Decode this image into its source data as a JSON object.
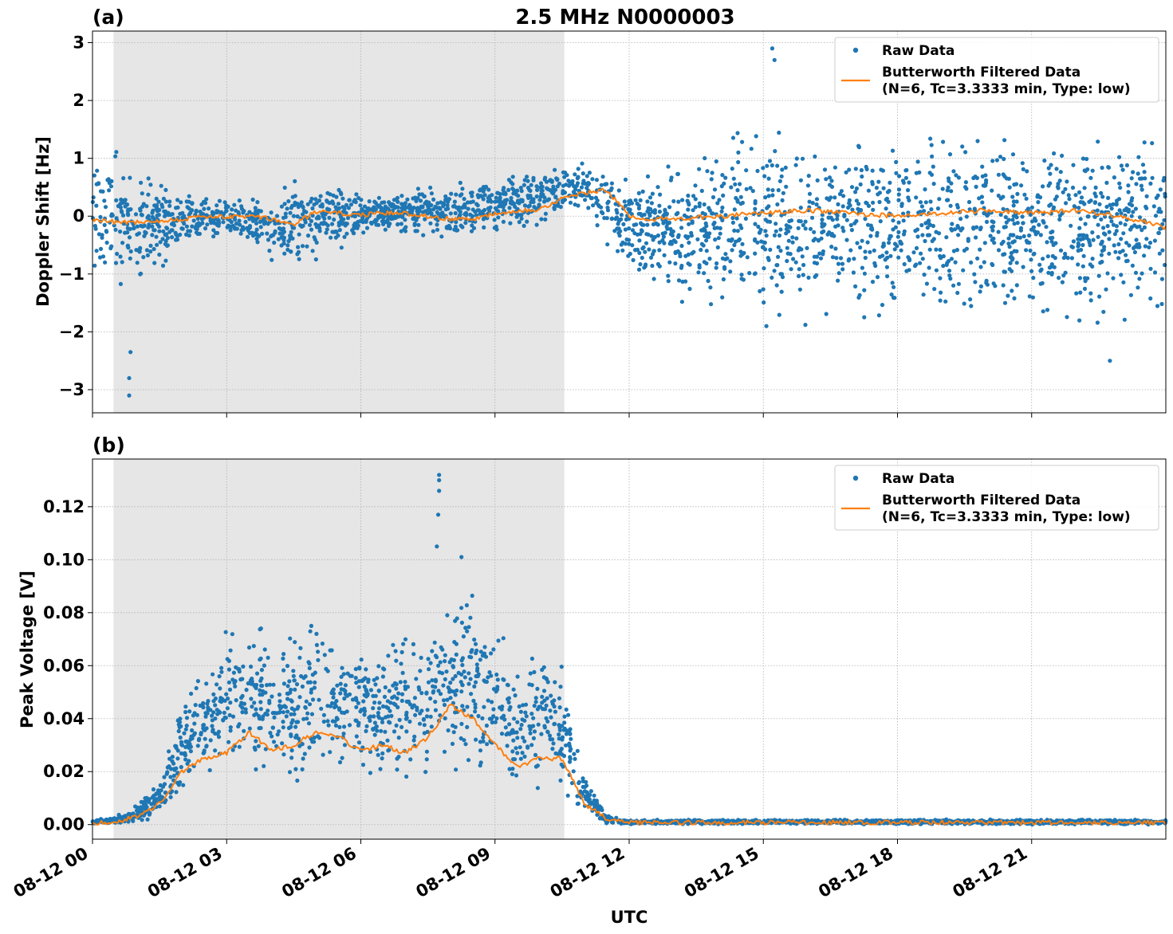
{
  "figure": {
    "title": "2.5 MHz N0000003",
    "xlabel": "UTC"
  },
  "chart_data": [
    {
      "type": "scatter",
      "panel_label": "(a)",
      "ylabel": "Doppler Shift [Hz]",
      "ylim": [
        -3.4,
        3.2
      ],
      "yticks": [
        -3,
        -2,
        -1,
        0,
        1,
        2,
        3
      ],
      "ytick_labels": [
        "−3",
        "−2",
        "−1",
        "0",
        "1",
        "2",
        "3"
      ],
      "xlim": [
        "08-12 00:00",
        "08-12 24:00"
      ],
      "xticks_hours": [
        0,
        3,
        6,
        9,
        12,
        15,
        18,
        21
      ],
      "xtick_labels": [
        "08-12 00",
        "08-12 03",
        "08-12 06",
        "08-12 09",
        "08-12 12",
        "08-12 15",
        "08-12 18",
        "08-12 21"
      ],
      "shaded_span_hours": [
        0.47,
        10.55
      ],
      "grid": true,
      "legend_placement": "top-right",
      "series": [
        {
          "name": "Raw Data",
          "kind": "scatter",
          "color": "#1f77b4",
          "envelope_hours": [
            0,
            1,
            2,
            3,
            4,
            5,
            6,
            7,
            8,
            9,
            10,
            11,
            12,
            13,
            14,
            15,
            16,
            17,
            18,
            19,
            20,
            21,
            22,
            23,
            24
          ],
          "envelope_low": [
            -1.0,
            -1.5,
            -0.6,
            -0.4,
            -0.8,
            -0.9,
            -0.4,
            -0.4,
            -0.4,
            -0.3,
            -0.2,
            0.0,
            -1.2,
            -1.7,
            -1.9,
            -2.0,
            -2.0,
            -2.0,
            -2.0,
            -2.0,
            -2.0,
            -2.0,
            -2.0,
            -2.0,
            -2.0
          ],
          "envelope_high": [
            1.3,
            1.0,
            0.5,
            0.4,
            0.4,
            0.9,
            0.5,
            0.5,
            0.6,
            0.7,
            0.9,
            1.0,
            0.8,
            1.2,
            1.6,
            1.6,
            1.6,
            1.6,
            1.6,
            1.6,
            1.6,
            1.6,
            1.6,
            1.6,
            1.6
          ],
          "outliers": [
            {
              "x_hours": 0.82,
              "y": -3.1
            },
            {
              "x_hours": 0.82,
              "y": -2.8
            },
            {
              "x_hours": 0.85,
              "y": -2.35
            },
            {
              "x_hours": 15.2,
              "y": 2.9
            },
            {
              "x_hours": 15.25,
              "y": 2.7
            },
            {
              "x_hours": 22.75,
              "y": -2.5
            }
          ]
        },
        {
          "name": "Butterworth Filtered Data\n(N=6, Tc=3.3333 min, Type: low)",
          "kind": "line",
          "color": "#ff7f0e",
          "x_hours": [
            0,
            0.5,
            1,
            1.5,
            2,
            2.5,
            3,
            3.5,
            4,
            4.5,
            5,
            5.5,
            6,
            6.5,
            7,
            7.5,
            8,
            8.5,
            9,
            9.5,
            10,
            10.5,
            11,
            11.5,
            12,
            12.5,
            13,
            14,
            15,
            16,
            17,
            18,
            19,
            20,
            21,
            22,
            23,
            24
          ],
          "y": [
            -0.05,
            -0.1,
            -0.1,
            -0.08,
            -0.05,
            0.0,
            -0.02,
            0.0,
            -0.05,
            -0.15,
            0.08,
            0.05,
            0.02,
            0.05,
            0.05,
            0.0,
            -0.05,
            -0.05,
            0.05,
            0.1,
            0.12,
            0.3,
            0.4,
            0.45,
            0.0,
            -0.05,
            -0.05,
            0.0,
            0.05,
            0.1,
            0.05,
            0.0,
            0.05,
            0.1,
            0.05,
            0.1,
            0.0,
            -0.2
          ]
        }
      ]
    },
    {
      "type": "scatter",
      "panel_label": "(b)",
      "ylabel": "Peak Voltage [V]",
      "ylim": [
        -0.0055,
        0.138
      ],
      "yticks": [
        0.0,
        0.02,
        0.04,
        0.06,
        0.08,
        0.1,
        0.12
      ],
      "ytick_labels": [
        "0.00",
        "0.02",
        "0.04",
        "0.06",
        "0.08",
        "0.10",
        "0.12"
      ],
      "xlim": [
        "08-12 00:00",
        "08-12 24:00"
      ],
      "xticks_hours": [
        0,
        3,
        6,
        9,
        12,
        15,
        18,
        21
      ],
      "xtick_labels": [
        "08-12 00",
        "08-12 03",
        "08-12 06",
        "08-12 09",
        "08-12 12",
        "08-12 15",
        "08-12 18",
        "08-12 21"
      ],
      "shaded_span_hours": [
        0.47,
        10.55
      ],
      "grid": true,
      "legend_placement": "top-right",
      "series": [
        {
          "name": "Raw Data",
          "kind": "scatter",
          "color": "#1f77b4",
          "envelope_hours": [
            0,
            0.5,
            1,
            1.5,
            2,
            2.5,
            3,
            3.5,
            4,
            4.5,
            5,
            5.5,
            6,
            6.5,
            7,
            7.5,
            8,
            8.5,
            9,
            9.5,
            10,
            10.5,
            11,
            11.5,
            12,
            13,
            15,
            18,
            21,
            24
          ],
          "envelope_low": [
            0.0,
            0.0,
            0.0,
            0.002,
            0.01,
            0.015,
            0.015,
            0.015,
            0.015,
            0.015,
            0.015,
            0.015,
            0.015,
            0.015,
            0.015,
            0.015,
            0.015,
            0.015,
            0.012,
            0.012,
            0.012,
            0.01,
            0.002,
            0.0,
            0.0,
            0.0,
            0.0,
            0.0,
            0.0,
            0.0
          ],
          "envelope_high": [
            0.002,
            0.003,
            0.008,
            0.02,
            0.05,
            0.06,
            0.075,
            0.085,
            0.07,
            0.075,
            0.085,
            0.08,
            0.075,
            0.07,
            0.075,
            0.08,
            0.09,
            0.1,
            0.08,
            0.06,
            0.07,
            0.065,
            0.02,
            0.004,
            0.002,
            0.002,
            0.002,
            0.002,
            0.002,
            0.002
          ],
          "outliers": [
            {
              "x_hours": 7.75,
              "y": 0.132
            },
            {
              "x_hours": 7.75,
              "y": 0.13
            },
            {
              "x_hours": 7.75,
              "y": 0.126
            },
            {
              "x_hours": 7.73,
              "y": 0.117
            },
            {
              "x_hours": 7.7,
              "y": 0.105
            },
            {
              "x_hours": 8.25,
              "y": 0.101
            }
          ]
        },
        {
          "name": "Butterworth Filtered Data\n(N=6, Tc=3.3333 min, Type: low)",
          "kind": "line",
          "color": "#ff7f0e",
          "x_hours": [
            0,
            0.5,
            1,
            1.5,
            2,
            2.5,
            3,
            3.5,
            4,
            4.5,
            5,
            5.5,
            6,
            6.5,
            7,
            7.5,
            8,
            8.5,
            9,
            9.5,
            10,
            10.5,
            11,
            11.5,
            12,
            13,
            15,
            18,
            21,
            24
          ],
          "y": [
            0.0005,
            0.001,
            0.003,
            0.008,
            0.02,
            0.025,
            0.027,
            0.035,
            0.028,
            0.03,
            0.035,
            0.033,
            0.028,
            0.03,
            0.027,
            0.033,
            0.045,
            0.04,
            0.03,
            0.022,
            0.025,
            0.025,
            0.008,
            0.002,
            0.0008,
            0.0008,
            0.0008,
            0.0008,
            0.0008,
            0.0008
          ]
        }
      ]
    }
  ]
}
